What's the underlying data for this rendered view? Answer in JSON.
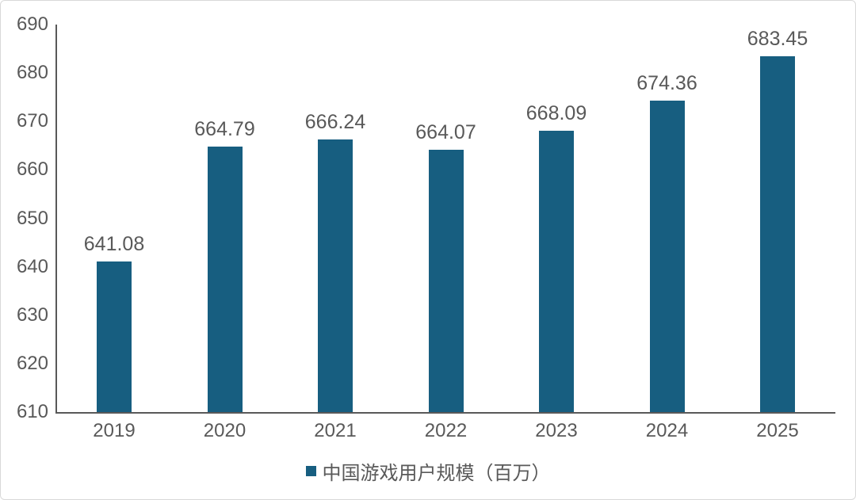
{
  "chart_data": {
    "type": "bar",
    "categories": [
      "2019",
      "2020",
      "2021",
      "2022",
      "2023",
      "2024",
      "2025"
    ],
    "values": [
      641.08,
      664.79,
      666.24,
      664.07,
      668.09,
      674.36,
      683.45
    ],
    "data_labels": [
      "641.08",
      "664.79",
      "666.24",
      "664.07",
      "668.09",
      "674.36",
      "683.45"
    ],
    "title": "",
    "xlabel": "",
    "ylabel": "",
    "ylim": [
      610,
      690
    ],
    "yticks": [
      "610",
      "620",
      "630",
      "640",
      "650",
      "660",
      "670",
      "680",
      "690"
    ],
    "grid": false,
    "legend": {
      "label": "中国游戏用户规模（百万）",
      "position": "bottom",
      "marker": "square"
    },
    "colors": {
      "bar": "#175E80",
      "axis": "#595959",
      "text": "#595959",
      "frame_border": "#d9d9d9",
      "background": "#ffffff"
    }
  }
}
